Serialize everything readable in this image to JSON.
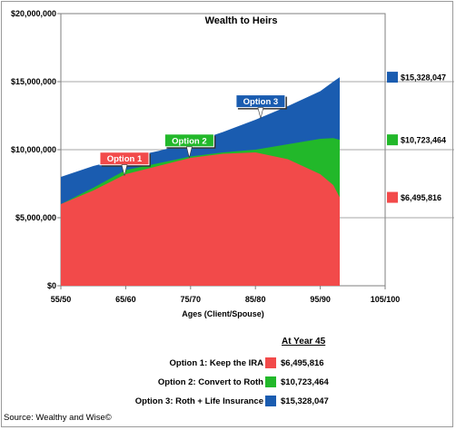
{
  "chart_data": {
    "type": "area",
    "title": "Wealth to Heirs",
    "xlabel": "Ages (Client/Spouse)",
    "ylabel": "",
    "categories": [
      "55/50",
      "65/60",
      "75/70",
      "85/80",
      "95/90",
      "105/100"
    ],
    "x_range": [
      55,
      105
    ],
    "ylim": [
      0,
      20000000
    ],
    "y_ticks": [
      "$0",
      "$5,000,000",
      "$10,000,000",
      "$15,000,000",
      "$20,000,000"
    ],
    "grid": "horizontal gridlines at 5,000,000, 10,000,000 and 15,000,000",
    "series": [
      {
        "name": "Option 3",
        "color": "#1a5cb0",
        "x": [
          55,
          60,
          65,
          70,
          75,
          80,
          85,
          90,
          95,
          97,
          98
        ],
        "values": [
          8000000,
          8800000,
          9400000,
          9900000,
          10500000,
          11300000,
          12200000,
          13200000,
          14300000,
          15000000,
          15328047
        ]
      },
      {
        "name": "Option 2",
        "color": "#22b82a",
        "x": [
          55,
          60,
          65,
          70,
          75,
          80,
          85,
          90,
          95,
          97,
          98
        ],
        "values": [
          6000000,
          7200000,
          8500000,
          9000000,
          9500000,
          9800000,
          10000000,
          10400000,
          10800000,
          10850000,
          10723464
        ]
      },
      {
        "name": "Option 1",
        "color": "#f24a4a",
        "x": [
          55,
          60,
          65,
          70,
          75,
          80,
          85,
          90,
          95,
          97,
          98
        ],
        "values": [
          6000000,
          7000000,
          8200000,
          8800000,
          9400000,
          9700000,
          9800000,
          9300000,
          8200000,
          7400000,
          6495816
        ]
      }
    ],
    "callouts": [
      {
        "label": "Option 1",
        "color": "#f24a4a",
        "x": 64.8
      },
      {
        "label": "Option 2",
        "color": "#22b82a",
        "x": 74.8
      },
      {
        "label": "Option 3",
        "color": "#1a5cb0",
        "x": 85.8
      }
    ],
    "end_values": [
      {
        "label": "$15,328,047",
        "value": 15328047,
        "color": "#1a5cb0"
      },
      {
        "label": "$10,723,464",
        "value": 10723464,
        "color": "#22b82a"
      },
      {
        "label": "$6,495,816",
        "value": 6495816,
        "color": "#f24a4a"
      }
    ]
  },
  "legend": {
    "heading": "At Year 45",
    "rows": [
      {
        "label": "Option 1:  Keep the IRA",
        "value": "$6,495,816",
        "color": "#f24a4a"
      },
      {
        "label": "Option 2:  Convert to Roth",
        "value": "$10,723,464",
        "color": "#22b82a"
      },
      {
        "label": "Option 3:  Roth + Life Insurance",
        "value": "$15,328,047",
        "color": "#1a5cb0"
      }
    ]
  },
  "source": "Source: Wealthy and Wise©"
}
